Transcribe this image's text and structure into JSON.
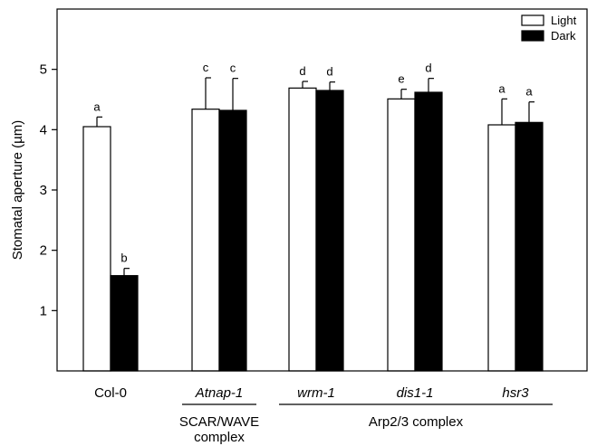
{
  "chart_data": {
    "type": "bar",
    "title": "",
    "xlabel": "",
    "ylabel": "Stomatal aperture (µm)",
    "ylim": [
      0,
      6
    ],
    "yticks": [
      1,
      2,
      3,
      4,
      5
    ],
    "grid": false,
    "legend_position": "top-right",
    "categories": [
      {
        "label": "Col-0",
        "italic": false
      },
      {
        "label": "Atnap-1",
        "italic": true
      },
      {
        "label": "wrm-1",
        "italic": true
      },
      {
        "label": "dis1-1",
        "italic": true
      },
      {
        "label": "hsr3",
        "italic": true
      }
    ],
    "series": [
      {
        "name": "Light",
        "fill": "#ffffff",
        "values": [
          4.05,
          4.34,
          4.69,
          4.51,
          4.08
        ],
        "errors": [
          0.16,
          0.52,
          0.11,
          0.16,
          0.43
        ],
        "significance": [
          "a",
          "c",
          "d",
          "e",
          "a"
        ]
      },
      {
        "name": "Dark",
        "fill": "#000000",
        "values": [
          1.58,
          4.32,
          4.65,
          4.62,
          4.12
        ],
        "errors": [
          0.12,
          0.53,
          0.14,
          0.23,
          0.34
        ],
        "significance": [
          "b",
          "c",
          "d",
          "d",
          "a"
        ]
      }
    ],
    "groups": [
      {
        "lines": [
          "SCAR/WAVE",
          "complex"
        ],
        "first_category": 1,
        "last_category": 1
      },
      {
        "lines": [
          "Arp2/3 complex"
        ],
        "first_category": 2,
        "last_category": 4
      }
    ]
  }
}
